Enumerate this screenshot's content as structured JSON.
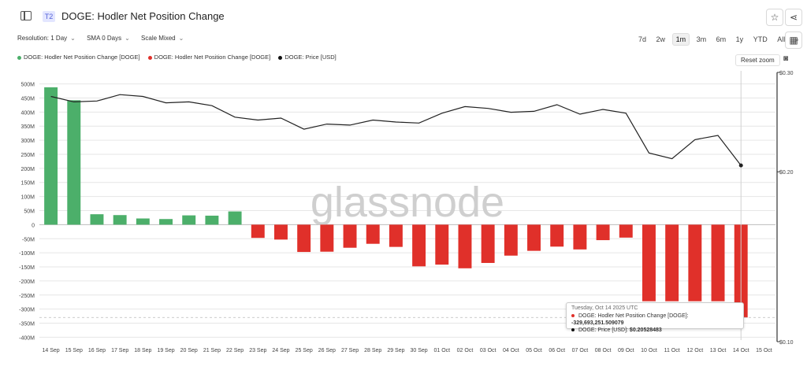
{
  "header": {
    "badge": "T2",
    "title": "DOGE: Hodler Net Position Change"
  },
  "controls": {
    "resolution": "Resolution: 1 Day",
    "sma": "SMA 0 Days",
    "scale": "Scale Mixed"
  },
  "ranges": [
    "7d",
    "2w",
    "1m",
    "3m",
    "6m",
    "1y",
    "YTD",
    "All"
  ],
  "active_range": "1m",
  "legend": [
    {
      "label": "DOGE: Hodler Net Position Change [DOGE]",
      "color": "#4caf6a"
    },
    {
      "label": "DOGE: Hodler Net Position Change [DOGE]",
      "color": "#e0302a"
    },
    {
      "label": "DOGE: Price [USD]",
      "color": "#111111"
    }
  ],
  "reset_zoom": "Reset zoom",
  "watermark": "glassnode",
  "tooltip": {
    "date": "Tuesday, Oct 14 2025 UTC",
    "row1_label": "DOGE: Hodler Net Position Change [DOGE]:",
    "row1_value": "-329,693,251.509079",
    "row2_label": "DOGE: Price [USD]:",
    "row2_value": "$0.20528483"
  },
  "colors": {
    "positive": "#4caf6a",
    "negative": "#e0302a",
    "price": "#222222",
    "grid": "#e6e6e6"
  },
  "chart_data": {
    "type": "bar",
    "categories": [
      "14 Sep",
      "15 Sep",
      "16 Sep",
      "17 Sep",
      "18 Sep",
      "19 Sep",
      "20 Sep",
      "21 Sep",
      "22 Sep",
      "23 Sep",
      "24 Sep",
      "25 Sep",
      "26 Sep",
      "27 Sep",
      "28 Sep",
      "29 Sep",
      "30 Sep",
      "01 Oct",
      "02 Oct",
      "03 Oct",
      "04 Oct",
      "05 Oct",
      "06 Oct",
      "07 Oct",
      "08 Oct",
      "09 Oct",
      "10 Oct",
      "11 Oct",
      "12 Oct",
      "13 Oct",
      "14 Oct",
      "15 Oct"
    ],
    "series": [
      {
        "name": "DOGE: Hodler Net Position Change [DOGE]",
        "axis": "left",
        "values": [
          488000000,
          442000000,
          37000000,
          34000000,
          22000000,
          20000000,
          33000000,
          32000000,
          47000000,
          -47000000,
          -53000000,
          -97000000,
          -96000000,
          -82000000,
          -68000000,
          -79000000,
          -148000000,
          -142000000,
          -155000000,
          -136000000,
          -110000000,
          -93000000,
          -78000000,
          -88000000,
          -55000000,
          -46000000,
          -272000000,
          -272000000,
          -272000000,
          -272000000,
          -329693251.509079,
          null
        ]
      },
      {
        "name": "DOGE: Price [USD]",
        "type": "line",
        "axis": "right",
        "values": [
          0.272,
          0.266,
          0.267,
          0.274,
          0.272,
          0.265,
          0.266,
          0.262,
          0.25,
          0.247,
          0.249,
          0.238,
          0.243,
          0.242,
          0.247,
          0.245,
          0.244,
          0.254,
          0.261,
          0.259,
          0.255,
          0.256,
          0.263,
          0.253,
          0.258,
          0.254,
          0.216,
          0.211,
          0.228,
          0.232,
          0.20528483,
          null
        ]
      }
    ],
    "y_left": {
      "ticks": [
        500000000,
        450000000,
        400000000,
        350000000,
        300000000,
        250000000,
        200000000,
        150000000,
        100000000,
        50000000,
        0,
        -50000000,
        -100000000,
        -150000000,
        -200000000,
        -250000000,
        -300000000,
        -350000000,
        -400000000
      ],
      "tick_labels": [
        "500M",
        "450M",
        "400M",
        "350M",
        "300M",
        "250M",
        "200M",
        "150M",
        "100M",
        "50M",
        "0",
        "-50M",
        "-100M",
        "-150M",
        "-200M",
        "-250M",
        "-300M",
        "-350M",
        "-400M"
      ],
      "ylim": [
        -410000000,
        510000000
      ]
    },
    "y_right": {
      "scale": "log",
      "ticks": [
        0.3,
        0.2,
        0.1
      ],
      "tick_labels": [
        "$0.30",
        "$0.20",
        "$0.10"
      ],
      "ylim": [
        0.1,
        0.3
      ]
    },
    "grid": true,
    "legend_position": "top-left"
  }
}
